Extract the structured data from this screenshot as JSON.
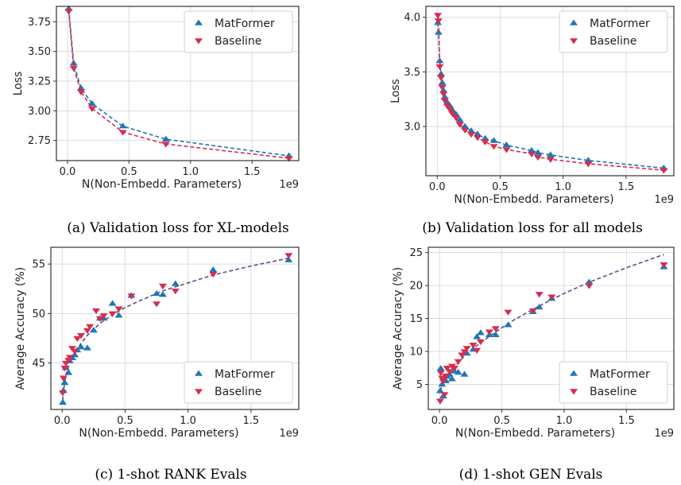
{
  "chart_data": [
    {
      "type": "line",
      "caption": "(a) Validation loss for XL-models",
      "xlabel": "N(Non-Embedd. Parameters)",
      "x_offset_label": "1e9",
      "ylabel": "Loss",
      "xlim": [
        -0.09,
        1.88
      ],
      "ylim": [
        2.58,
        3.88
      ],
      "xticks": [
        0.0,
        0.5,
        1.0,
        1.5
      ],
      "xtick_labels": [
        "0.0",
        "0.5",
        "1.0",
        "1.5"
      ],
      "yticks": [
        2.75,
        3.0,
        3.25,
        3.5,
        3.75
      ],
      "ytick_labels": [
        "2.75",
        "3.00",
        "3.25",
        "3.50",
        "3.75"
      ],
      "legend_position": "upper-right",
      "grid": true,
      "series": [
        {
          "name": "MatFormer",
          "color": "#1f77b4",
          "marker": "triangle-up",
          "x": [
            0.01,
            0.05,
            0.11,
            0.2,
            0.45,
            0.8,
            1.8
          ],
          "y": [
            3.86,
            3.4,
            3.19,
            3.06,
            2.87,
            2.76,
            2.62
          ]
        },
        {
          "name": "Baseline",
          "color": "#d62d4f",
          "marker": "triangle-down",
          "x": [
            0.01,
            0.05,
            0.11,
            0.2,
            0.45,
            0.8,
            1.8
          ],
          "y": [
            3.84,
            3.36,
            3.16,
            3.02,
            2.82,
            2.72,
            2.6
          ]
        }
      ]
    },
    {
      "type": "line",
      "caption": "(b) Validation loss for all models",
      "xlabel": "N(Non-Embedd. Parameters)",
      "x_offset_label": "1e9",
      "ylabel": "Loss",
      "xlim": [
        -0.09,
        1.88
      ],
      "ylim": [
        2.55,
        4.1
      ],
      "xticks": [
        0.0,
        0.5,
        1.0,
        1.5
      ],
      "xtick_labels": [
        "0.0",
        "0.5",
        "1.0",
        "1.5"
      ],
      "yticks": [
        3.0,
        3.5,
        4.0
      ],
      "ytick_labels": [
        "3.0",
        "3.5",
        "4.0"
      ],
      "legend_position": "upper-right",
      "grid": true,
      "series": [
        {
          "name": "MatFormer",
          "color": "#1f77b4",
          "marker": "triangle-up",
          "x": [
            0.005,
            0.01,
            0.02,
            0.03,
            0.04,
            0.05,
            0.06,
            0.08,
            0.1,
            0.12,
            0.15,
            0.18,
            0.22,
            0.27,
            0.32,
            0.38,
            0.45,
            0.55,
            0.75,
            0.8,
            0.9,
            1.2,
            1.8
          ],
          "y": [
            3.95,
            3.86,
            3.6,
            3.48,
            3.4,
            3.33,
            3.27,
            3.22,
            3.19,
            3.15,
            3.11,
            3.06,
            3.0,
            2.96,
            2.93,
            2.89,
            2.87,
            2.83,
            2.78,
            2.76,
            2.74,
            2.69,
            2.62
          ]
        },
        {
          "name": "Baseline",
          "color": "#d62d4f",
          "marker": "triangle-down",
          "x": [
            0.005,
            0.01,
            0.02,
            0.03,
            0.04,
            0.05,
            0.06,
            0.08,
            0.1,
            0.12,
            0.15,
            0.18,
            0.22,
            0.27,
            0.32,
            0.38,
            0.45,
            0.55,
            0.75,
            0.8,
            0.9,
            1.2,
            1.8
          ],
          "y": [
            4.02,
            3.97,
            3.55,
            3.45,
            3.36,
            3.3,
            3.24,
            3.19,
            3.16,
            3.12,
            3.08,
            3.02,
            2.97,
            2.93,
            2.9,
            2.86,
            2.82,
            2.79,
            2.75,
            2.72,
            2.7,
            2.66,
            2.6
          ]
        }
      ]
    },
    {
      "type": "scatter",
      "caption": "(c) 1-shot RANK Evals",
      "xlabel": "N(Non-Embedd. Parameters)",
      "x_offset_label": "1e9",
      "ylabel": "Average Accuracy (%)",
      "xlim": [
        -0.09,
        1.88
      ],
      "ylim": [
        40.3,
        56.7
      ],
      "xticks": [
        0.0,
        0.5,
        1.0,
        1.5
      ],
      "xtick_labels": [
        "0.0",
        "0.5",
        "1.0",
        "1.5"
      ],
      "yticks": [
        45,
        50,
        55
      ],
      "ytick_labels": [
        "45",
        "50",
        "55"
      ],
      "legend_position": "lower-right",
      "grid": true,
      "fit_color": "#6a4a8a",
      "fit_x": [
        0.005,
        0.01,
        0.02,
        0.04,
        0.06,
        0.1,
        0.15,
        0.2,
        0.3,
        0.4,
        0.5,
        0.6,
        0.8,
        1.0,
        1.2,
        1.5,
        1.8
      ],
      "fit_y": [
        41.2,
        42.0,
        43.1,
        44.3,
        45.0,
        46.0,
        47.0,
        47.8,
        49.0,
        49.9,
        50.6,
        51.2,
        52.3,
        53.1,
        53.9,
        54.8,
        55.6
      ],
      "series": [
        {
          "name": "MatFormer",
          "color": "#1f77b4",
          "marker": "triangle-up",
          "x": [
            0.005,
            0.01,
            0.02,
            0.03,
            0.05,
            0.06,
            0.08,
            0.1,
            0.12,
            0.15,
            0.2,
            0.25,
            0.3,
            0.33,
            0.4,
            0.45,
            0.55,
            0.75,
            0.8,
            0.9,
            1.2,
            1.8
          ],
          "y": [
            41.0,
            42.2,
            43.0,
            44.5,
            44.0,
            45.2,
            45.5,
            45.8,
            46.3,
            46.6,
            46.5,
            48.3,
            49.5,
            49.5,
            51.0,
            49.8,
            51.8,
            52.0,
            51.9,
            53.0,
            54.4,
            55.4
          ]
        },
        {
          "name": "Baseline",
          "color": "#d62d4f",
          "marker": "triangle-down",
          "x": [
            0.005,
            0.01,
            0.02,
            0.03,
            0.05,
            0.06,
            0.08,
            0.1,
            0.12,
            0.15,
            0.2,
            0.22,
            0.27,
            0.3,
            0.33,
            0.4,
            0.45,
            0.55,
            0.75,
            0.8,
            0.9,
            1.2,
            1.8
          ],
          "y": [
            42.0,
            43.5,
            44.5,
            45.0,
            45.3,
            45.6,
            46.5,
            46.2,
            47.5,
            47.8,
            48.3,
            48.7,
            50.3,
            49.5,
            49.8,
            50.0,
            50.5,
            51.8,
            51.0,
            52.8,
            52.3,
            54.0,
            55.9
          ]
        }
      ]
    },
    {
      "type": "scatter",
      "caption": "(d) 1-shot GEN Evals",
      "xlabel": "N(Non-Embedd. Parameters)",
      "x_offset_label": "1e9",
      "ylabel": "Average Accuracy (%)",
      "xlim": [
        -0.09,
        1.88
      ],
      "ylim": [
        1.2,
        25.8
      ],
      "xticks": [
        0.0,
        0.5,
        1.0,
        1.5
      ],
      "xtick_labels": [
        "0.0",
        "0.5",
        "1.0",
        "1.5"
      ],
      "yticks": [
        5,
        10,
        15,
        20,
        25
      ],
      "ytick_labels": [
        "5",
        "10",
        "15",
        "20",
        "25"
      ],
      "legend_position": "lower-right",
      "grid": true,
      "fit_color": "#6a4a8a",
      "fit_x": [
        0.005,
        0.02,
        0.04,
        0.06,
        0.1,
        0.15,
        0.2,
        0.3,
        0.4,
        0.5,
        0.6,
        0.8,
        1.0,
        1.2,
        1.5,
        1.8
      ],
      "fit_y": [
        4.0,
        4.8,
        5.6,
        6.2,
        7.2,
        8.3,
        9.3,
        10.9,
        12.3,
        13.6,
        14.8,
        16.9,
        18.8,
        20.5,
        22.7,
        24.7
      ],
      "series": [
        {
          "name": "MatFormer",
          "color": "#1f77b4",
          "marker": "triangle-up",
          "x": [
            0.005,
            0.01,
            0.02,
            0.03,
            0.04,
            0.05,
            0.06,
            0.08,
            0.1,
            0.12,
            0.15,
            0.2,
            0.22,
            0.27,
            0.3,
            0.33,
            0.4,
            0.45,
            0.55,
            0.75,
            0.8,
            0.9,
            1.2,
            1.8
          ],
          "y": [
            4.0,
            7.4,
            5.0,
            3.2,
            5.8,
            5.5,
            6.2,
            6.5,
            5.8,
            7.0,
            6.8,
            6.5,
            9.7,
            10.3,
            12.2,
            12.8,
            12.5,
            12.5,
            14.0,
            16.0,
            16.7,
            18.0,
            20.5,
            22.8
          ]
        },
        {
          "name": "Baseline",
          "color": "#d62d4f",
          "marker": "triangle-down",
          "x": [
            0.005,
            0.01,
            0.02,
            0.03,
            0.04,
            0.05,
            0.06,
            0.08,
            0.1,
            0.12,
            0.15,
            0.18,
            0.2,
            0.22,
            0.27,
            0.3,
            0.33,
            0.4,
            0.45,
            0.55,
            0.75,
            0.8,
            0.9,
            1.2,
            1.8
          ],
          "y": [
            2.5,
            6.8,
            6.0,
            5.5,
            3.5,
            6.3,
            7.5,
            7.0,
            7.8,
            7.5,
            8.5,
            9.5,
            10.0,
            10.5,
            11.0,
            10.2,
            11.5,
            13.0,
            13.5,
            16.0,
            16.2,
            18.7,
            18.3,
            20.0,
            23.2
          ]
        }
      ]
    }
  ]
}
